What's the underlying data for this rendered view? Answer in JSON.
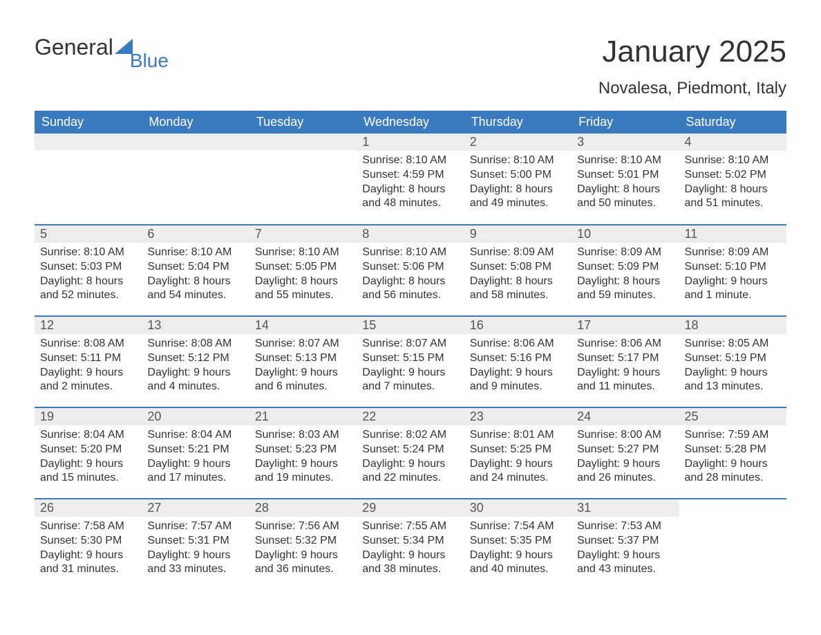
{
  "brand": {
    "part1": "General",
    "part2": "Blue"
  },
  "title": "January 2025",
  "location": "Novalesa, Piedmont, Italy",
  "colors": {
    "header_bg": "#3a7bbf",
    "header_fg": "#ffffff",
    "daynum_bg": "#ededed",
    "text": "#333333",
    "accent": "#3a7bbf"
  },
  "columns": [
    "Sunday",
    "Monday",
    "Tuesday",
    "Wednesday",
    "Thursday",
    "Friday",
    "Saturday"
  ],
  "weeks": [
    [
      null,
      null,
      null,
      {
        "n": "1",
        "sunrise": "8:10 AM",
        "sunset": "4:59 PM",
        "dl1": "8 hours",
        "dl2": "and 48 minutes."
      },
      {
        "n": "2",
        "sunrise": "8:10 AM",
        "sunset": "5:00 PM",
        "dl1": "8 hours",
        "dl2": "and 49 minutes."
      },
      {
        "n": "3",
        "sunrise": "8:10 AM",
        "sunset": "5:01 PM",
        "dl1": "8 hours",
        "dl2": "and 50 minutes."
      },
      {
        "n": "4",
        "sunrise": "8:10 AM",
        "sunset": "5:02 PM",
        "dl1": "8 hours",
        "dl2": "and 51 minutes."
      }
    ],
    [
      {
        "n": "5",
        "sunrise": "8:10 AM",
        "sunset": "5:03 PM",
        "dl1": "8 hours",
        "dl2": "and 52 minutes."
      },
      {
        "n": "6",
        "sunrise": "8:10 AM",
        "sunset": "5:04 PM",
        "dl1": "8 hours",
        "dl2": "and 54 minutes."
      },
      {
        "n": "7",
        "sunrise": "8:10 AM",
        "sunset": "5:05 PM",
        "dl1": "8 hours",
        "dl2": "and 55 minutes."
      },
      {
        "n": "8",
        "sunrise": "8:10 AM",
        "sunset": "5:06 PM",
        "dl1": "8 hours",
        "dl2": "and 56 minutes."
      },
      {
        "n": "9",
        "sunrise": "8:09 AM",
        "sunset": "5:08 PM",
        "dl1": "8 hours",
        "dl2": "and 58 minutes."
      },
      {
        "n": "10",
        "sunrise": "8:09 AM",
        "sunset": "5:09 PM",
        "dl1": "8 hours",
        "dl2": "and 59 minutes."
      },
      {
        "n": "11",
        "sunrise": "8:09 AM",
        "sunset": "5:10 PM",
        "dl1": "9 hours",
        "dl2": "and 1 minute."
      }
    ],
    [
      {
        "n": "12",
        "sunrise": "8:08 AM",
        "sunset": "5:11 PM",
        "dl1": "9 hours",
        "dl2": "and 2 minutes."
      },
      {
        "n": "13",
        "sunrise": "8:08 AM",
        "sunset": "5:12 PM",
        "dl1": "9 hours",
        "dl2": "and 4 minutes."
      },
      {
        "n": "14",
        "sunrise": "8:07 AM",
        "sunset": "5:13 PM",
        "dl1": "9 hours",
        "dl2": "and 6 minutes."
      },
      {
        "n": "15",
        "sunrise": "8:07 AM",
        "sunset": "5:15 PM",
        "dl1": "9 hours",
        "dl2": "and 7 minutes."
      },
      {
        "n": "16",
        "sunrise": "8:06 AM",
        "sunset": "5:16 PM",
        "dl1": "9 hours",
        "dl2": "and 9 minutes."
      },
      {
        "n": "17",
        "sunrise": "8:06 AM",
        "sunset": "5:17 PM",
        "dl1": "9 hours",
        "dl2": "and 11 minutes."
      },
      {
        "n": "18",
        "sunrise": "8:05 AM",
        "sunset": "5:19 PM",
        "dl1": "9 hours",
        "dl2": "and 13 minutes."
      }
    ],
    [
      {
        "n": "19",
        "sunrise": "8:04 AM",
        "sunset": "5:20 PM",
        "dl1": "9 hours",
        "dl2": "and 15 minutes."
      },
      {
        "n": "20",
        "sunrise": "8:04 AM",
        "sunset": "5:21 PM",
        "dl1": "9 hours",
        "dl2": "and 17 minutes."
      },
      {
        "n": "21",
        "sunrise": "8:03 AM",
        "sunset": "5:23 PM",
        "dl1": "9 hours",
        "dl2": "and 19 minutes."
      },
      {
        "n": "22",
        "sunrise": "8:02 AM",
        "sunset": "5:24 PM",
        "dl1": "9 hours",
        "dl2": "and 22 minutes."
      },
      {
        "n": "23",
        "sunrise": "8:01 AM",
        "sunset": "5:25 PM",
        "dl1": "9 hours",
        "dl2": "and 24 minutes."
      },
      {
        "n": "24",
        "sunrise": "8:00 AM",
        "sunset": "5:27 PM",
        "dl1": "9 hours",
        "dl2": "and 26 minutes."
      },
      {
        "n": "25",
        "sunrise": "7:59 AM",
        "sunset": "5:28 PM",
        "dl1": "9 hours",
        "dl2": "and 28 minutes."
      }
    ],
    [
      {
        "n": "26",
        "sunrise": "7:58 AM",
        "sunset": "5:30 PM",
        "dl1": "9 hours",
        "dl2": "and 31 minutes."
      },
      {
        "n": "27",
        "sunrise": "7:57 AM",
        "sunset": "5:31 PM",
        "dl1": "9 hours",
        "dl2": "and 33 minutes."
      },
      {
        "n": "28",
        "sunrise": "7:56 AM",
        "sunset": "5:32 PM",
        "dl1": "9 hours",
        "dl2": "and 36 minutes."
      },
      {
        "n": "29",
        "sunrise": "7:55 AM",
        "sunset": "5:34 PM",
        "dl1": "9 hours",
        "dl2": "and 38 minutes."
      },
      {
        "n": "30",
        "sunrise": "7:54 AM",
        "sunset": "5:35 PM",
        "dl1": "9 hours",
        "dl2": "and 40 minutes."
      },
      {
        "n": "31",
        "sunrise": "7:53 AM",
        "sunset": "5:37 PM",
        "dl1": "9 hours",
        "dl2": "and 43 minutes."
      },
      null
    ]
  ],
  "labels": {
    "sunrise": "Sunrise: ",
    "sunset": "Sunset: ",
    "daylight": "Daylight: "
  }
}
